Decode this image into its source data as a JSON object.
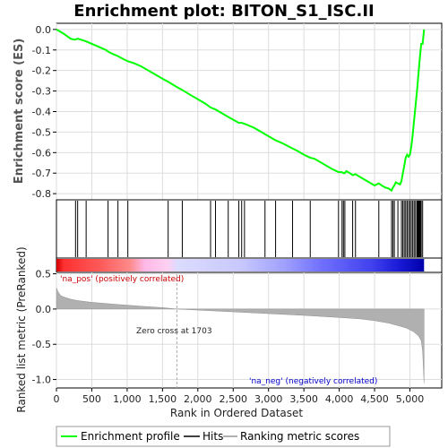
{
  "chart_data": [
    {
      "type": "line",
      "title": "Enrichment plot: BITON_S1_ISC.II",
      "ylabel": "Enrichment score (ES)",
      "xlim": [
        0,
        5450
      ],
      "ylim": [
        -0.83,
        0.03
      ],
      "yticks": [
        0.0,
        -0.1,
        -0.2,
        -0.3,
        -0.4,
        -0.5,
        -0.6,
        -0.7,
        -0.8
      ],
      "ytick_labels": [
        "0.0",
        "-0.1",
        "-0.2",
        "-0.3",
        "-0.4",
        "-0.5",
        "-0.6",
        "-0.7",
        "-0.8"
      ],
      "grid": true,
      "series": [
        {
          "name": "Enrichment profile",
          "color": "#00ff00",
          "x": [
            0,
            100,
            200,
            260,
            300,
            330,
            350,
            420,
            500,
            600,
            700,
            740,
            800,
            870,
            950,
            1010,
            1100,
            1200,
            1300,
            1400,
            1500,
            1580,
            1700,
            1780,
            1900,
            2000,
            2100,
            2180,
            2250,
            2300,
            2400,
            2450,
            2500,
            2580,
            2620,
            2660,
            2700,
            2800,
            2900,
            2950,
            3000,
            3100,
            3200,
            3340,
            3400,
            3500,
            3590,
            3650,
            3700,
            3800,
            3900,
            3990,
            4040,
            4060,
            4080,
            4100,
            4150,
            4190,
            4230,
            4300,
            4400,
            4500,
            4560,
            4600,
            4650,
            4700,
            4740,
            4760,
            4780,
            4800,
            4830,
            4860,
            4880,
            4900,
            4920,
            4940,
            4960,
            4980,
            5000,
            5020,
            5040,
            5060,
            5080,
            5100,
            5120,
            5140,
            5160,
            5180,
            5200
          ],
          "y": [
            0.0,
            -0.02,
            -0.045,
            -0.05,
            -0.045,
            -0.048,
            -0.05,
            -0.058,
            -0.07,
            -0.085,
            -0.1,
            -0.11,
            -0.12,
            -0.13,
            -0.145,
            -0.155,
            -0.165,
            -0.18,
            -0.2,
            -0.22,
            -0.24,
            -0.255,
            -0.28,
            -0.295,
            -0.32,
            -0.34,
            -0.36,
            -0.38,
            -0.39,
            -0.4,
            -0.42,
            -0.43,
            -0.44,
            -0.455,
            -0.455,
            -0.46,
            -0.465,
            -0.48,
            -0.5,
            -0.51,
            -0.52,
            -0.54,
            -0.555,
            -0.58,
            -0.59,
            -0.61,
            -0.625,
            -0.63,
            -0.64,
            -0.66,
            -0.68,
            -0.695,
            -0.695,
            -0.7,
            -0.7,
            -0.69,
            -0.7,
            -0.71,
            -0.705,
            -0.72,
            -0.74,
            -0.76,
            -0.75,
            -0.76,
            -0.77,
            -0.775,
            -0.785,
            -0.77,
            -0.76,
            -0.745,
            -0.75,
            -0.755,
            -0.74,
            -0.7,
            -0.665,
            -0.625,
            -0.61,
            -0.62,
            -0.61,
            -0.57,
            -0.51,
            -0.44,
            -0.37,
            -0.3,
            -0.22,
            -0.14,
            -0.07,
            -0.07,
            0.0
          ]
        }
      ]
    },
    {
      "type": "scatter",
      "series": [
        {
          "name": "Hits",
          "x": [
            270,
            300,
            420,
            730,
            870,
            1010,
            1580,
            1780,
            2180,
            2250,
            2430,
            2580,
            2620,
            2660,
            2950,
            3100,
            3340,
            3590,
            3990,
            4040,
            4060,
            4080,
            4190,
            4230,
            4560,
            4740,
            4760,
            4780,
            4830,
            4880,
            4900,
            4920,
            4940,
            4960,
            4980,
            5000,
            5020,
            5040,
            5060,
            5080,
            5100,
            5110,
            5120,
            5130,
            5140,
            5150,
            5160,
            5180
          ]
        }
      ]
    },
    {
      "type": "area",
      "ylabel": "Ranked list metric (PreRanked)",
      "xlabel": "Rank in Ordered Dataset",
      "xlim": [
        0,
        5450
      ],
      "ylim": [
        -1.12,
        0.52
      ],
      "yticks": [
        0.5,
        0.0,
        -0.5,
        -1.0
      ],
      "ytick_labels": [
        "0.5",
        "0.0",
        "-0.5",
        "-1.0"
      ],
      "xticks": [
        0,
        500,
        1000,
        1500,
        2000,
        2500,
        3000,
        3500,
        4000,
        4500,
        5000
      ],
      "xtick_labels": [
        "0",
        "500",
        "1,000",
        "1,500",
        "2,000",
        "2,500",
        "3,000",
        "3,500",
        "4,000",
        "4,500",
        "5,000"
      ],
      "grid": true,
      "zero_cross": 1703,
      "series": [
        {
          "name": "Ranking metric scores",
          "color": "#b0b0b0",
          "x": [
            0,
            20,
            60,
            120,
            200,
            300,
            500,
            800,
            1200,
            1500,
            1703,
            2000,
            2500,
            3000,
            3500,
            4000,
            4300,
            4500,
            4700,
            4850,
            4950,
            5050,
            5120,
            5160,
            5180,
            5200
          ],
          "y": [
            0.3,
            0.25,
            0.19,
            0.165,
            0.14,
            0.12,
            0.095,
            0.07,
            0.04,
            0.02,
            0.0,
            -0.015,
            -0.04,
            -0.065,
            -0.09,
            -0.12,
            -0.14,
            -0.165,
            -0.2,
            -0.24,
            -0.27,
            -0.32,
            -0.38,
            -0.45,
            -0.6,
            -1.05
          ]
        }
      ],
      "annotations": {
        "positive": "'na_pos' (positively correlated)",
        "zero_cross": "Zero cross at 1703",
        "negative": "'na_neg' (negatively correlated)"
      }
    }
  ],
  "colors": {
    "profile": "#00ff00",
    "positive_text": "#cc0000",
    "negative_text": "#0000cc",
    "zero_line": "#aaaaaa"
  },
  "legend": {
    "profile_label": "Enrichment profile",
    "hits_label": "Hits",
    "metric_label": "Ranking metric scores"
  }
}
